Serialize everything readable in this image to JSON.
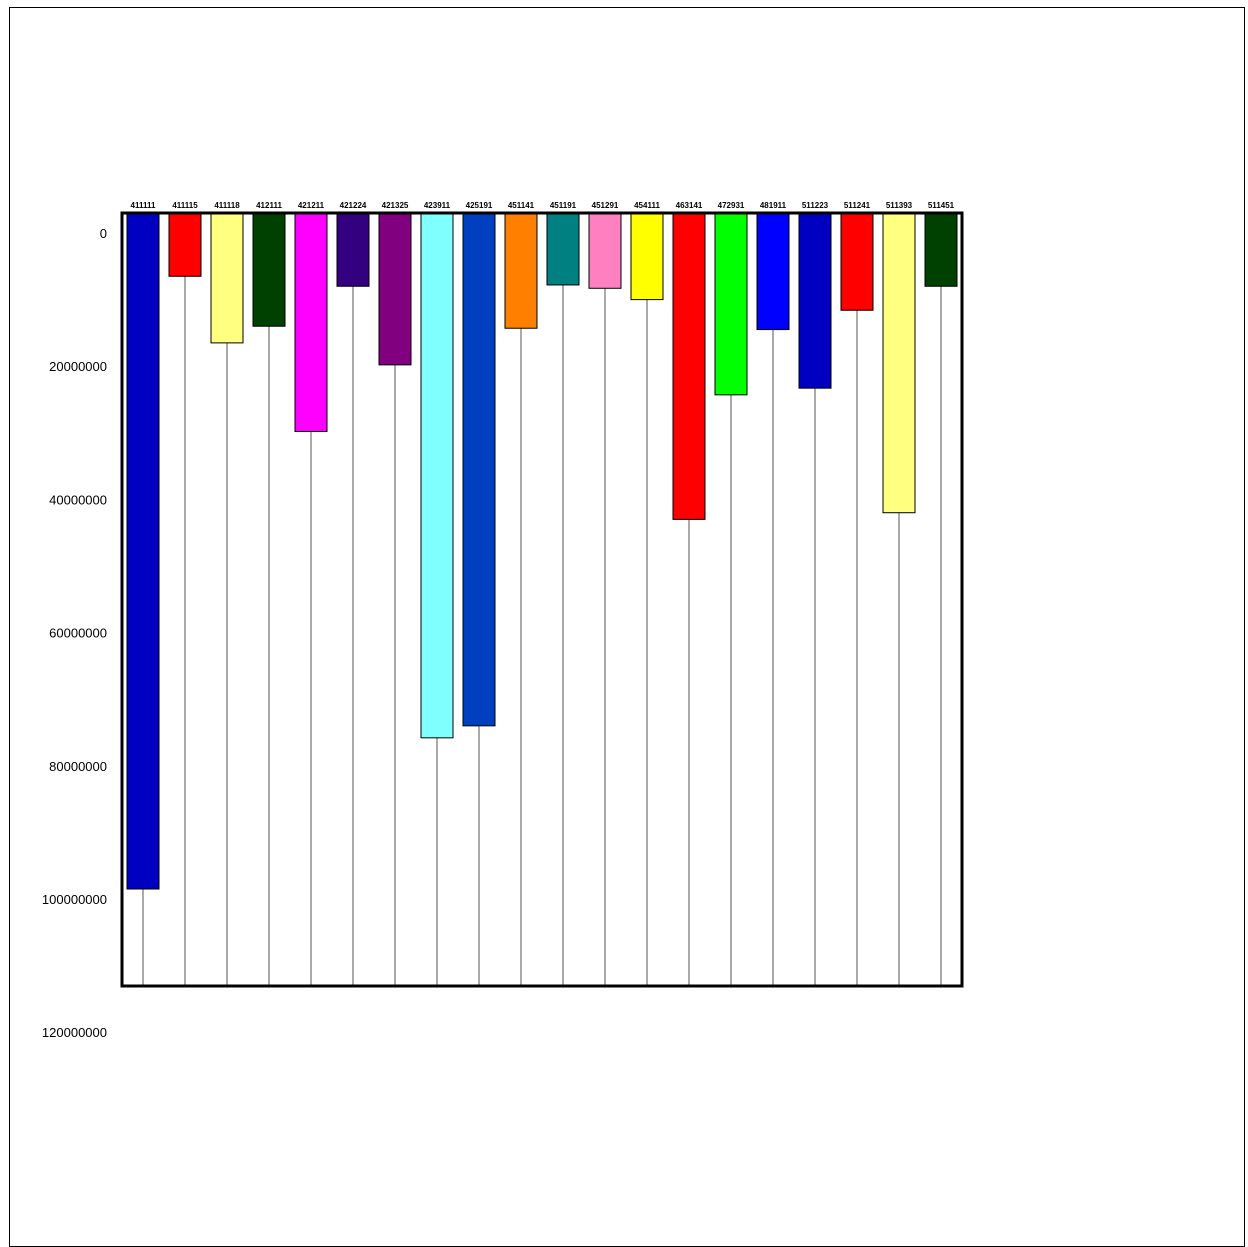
{
  "chart_data": {
    "type": "bar",
    "orientation": "vertical-inverted",
    "categories": [
      "411111",
      "411115",
      "411118",
      "412111",
      "421211",
      "421224",
      "421325",
      "423911",
      "425191",
      "451141",
      "451191",
      "451291",
      "454111",
      "463141",
      "472931",
      "481911",
      "511223",
      "511241",
      "511393",
      "511451"
    ],
    "values": [
      98500000,
      6500000,
      16500000,
      14000000,
      29800000,
      8000000,
      19800000,
      75800000,
      74000000,
      14300000,
      7800000,
      8300000,
      10000000,
      43000000,
      24300000,
      14500000,
      23300000,
      11600000,
      42000000,
      8000000
    ],
    "colors": [
      "#0000c0",
      "#ff0000",
      "#ffff80",
      "#004000",
      "#ff00ff",
      "#330080",
      "#800080",
      "#80ffff",
      "#0040c0",
      "#ff8000",
      "#008080",
      "#ff80c0",
      "#ffff00",
      "#ff0000",
      "#00ff00",
      "#0000ff",
      "#0000c0",
      "#ff0000",
      "#ffff80",
      "#004000"
    ],
    "yticks": [
      "0",
      "20000000",
      "40000000",
      "60000000",
      "80000000",
      "100000000",
      "120000000"
    ],
    "ytick_values": [
      0,
      20000000,
      40000000,
      60000000,
      80000000,
      100000000,
      120000000
    ],
    "ylim": [
      -2500000,
      117500000
    ],
    "ylabel": "",
    "xlabel": "",
    "title": "",
    "grid": false,
    "legend": "none"
  }
}
